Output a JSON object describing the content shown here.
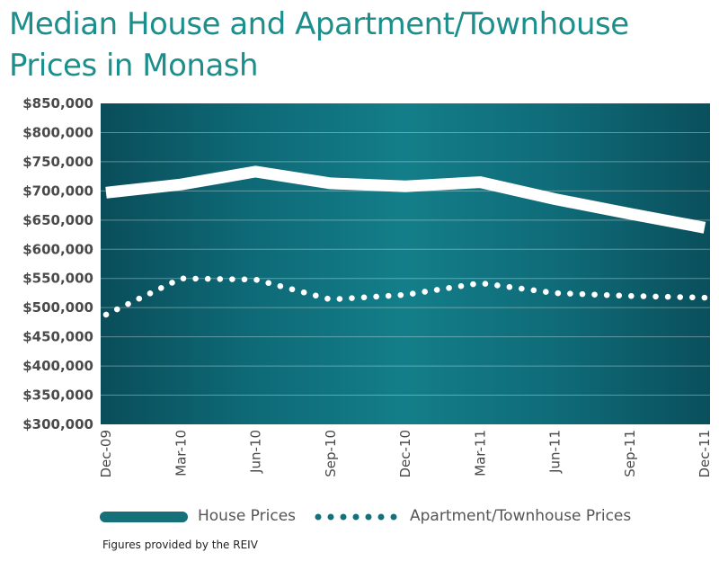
{
  "chart_data": {
    "type": "line",
    "title": "Median House and Apartment/Townhouse Prices in Monash",
    "categories": [
      "Dec-09",
      "Mar-10",
      "Jun-10",
      "Sep-10",
      "Dec-10",
      "Mar-11",
      "Jun-11",
      "Sep-11",
      "Dec-11"
    ],
    "series": [
      {
        "name": "House Prices",
        "style": "solid",
        "color": "#ffffff",
        "values": [
          697000,
          711000,
          733000,
          713000,
          708000,
          715000,
          686000,
          661000,
          637000
        ]
      },
      {
        "name": "Apartment/Townhouse Prices",
        "style": "dotted",
        "color": "#ffffff",
        "values": [
          488000,
          550000,
          548000,
          514000,
          522000,
          542000,
          525000,
          520000,
          517000
        ]
      }
    ],
    "ylim": [
      300000,
      850000
    ],
    "yticks": [
      850000,
      800000,
      750000,
      700000,
      650000,
      600000,
      550000,
      500000,
      450000,
      400000,
      350000,
      300000
    ],
    "ytick_labels": [
      "$850,000",
      "$800,000",
      "$750,000",
      "$700,000",
      "$650,000",
      "$600,000",
      "$550,000",
      "$500,000",
      "$450,000",
      "$400,000",
      "$350,000",
      "$300,000"
    ],
    "grid": true,
    "xlabel": "",
    "ylabel": "",
    "legend_position": "bottom"
  },
  "legend": {
    "house_label": "House Prices",
    "apartment_label": "Apartment/Townhouse Prices"
  },
  "footnote": "Figures provided by the REIV",
  "colors": {
    "title": "#1b8f8c",
    "plot_dark": "#0a4f5c",
    "plot_light": "#117a86",
    "line": "#ffffff",
    "legend_swatch": "#15707a"
  }
}
